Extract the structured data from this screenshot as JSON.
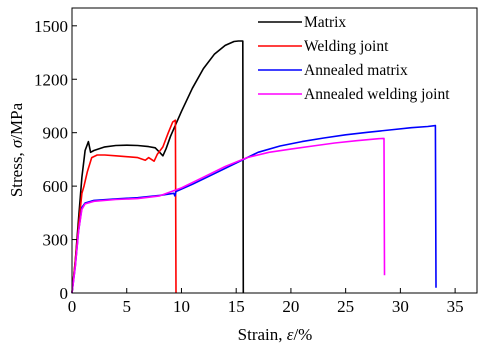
{
  "chart_data": {
    "type": "line",
    "xlabel_prefix": "Strain, ",
    "xlabel_symbol": "ε",
    "xlabel_suffix": "/%",
    "ylabel_prefix": "Stress, ",
    "ylabel_symbol": "σ",
    "ylabel_suffix": "/MPa",
    "xlim": [
      0,
      37
    ],
    "ylim": [
      0,
      1600
    ],
    "xticks": [
      0,
      5,
      10,
      15,
      20,
      25,
      30,
      35
    ],
    "yticks": [
      0,
      300,
      600,
      900,
      1200,
      1500
    ],
    "grid": false,
    "legend_position": "top-right",
    "series": [
      {
        "name": "Matrix",
        "color": "#000000",
        "points": [
          [
            0,
            0
          ],
          [
            0.3,
            180
          ],
          [
            0.6,
            420
          ],
          [
            0.9,
            650
          ],
          [
            1.2,
            800
          ],
          [
            1.5,
            850
          ],
          [
            1.7,
            790
          ],
          [
            2.0,
            800
          ],
          [
            3.0,
            820
          ],
          [
            4.0,
            828
          ],
          [
            5.0,
            830
          ],
          [
            6.0,
            828
          ],
          [
            7.0,
            822
          ],
          [
            7.6,
            815
          ],
          [
            8.0,
            790
          ],
          [
            8.3,
            770
          ],
          [
            8.6,
            810
          ],
          [
            9.0,
            880
          ],
          [
            10.0,
            1020
          ],
          [
            11.0,
            1150
          ],
          [
            12.0,
            1260
          ],
          [
            13.0,
            1340
          ],
          [
            14.0,
            1390
          ],
          [
            14.8,
            1412
          ],
          [
            15.2,
            1415
          ],
          [
            15.6,
            1415
          ],
          [
            15.65,
            0
          ]
        ]
      },
      {
        "name": "Welding joint",
        "color": "#ff0000",
        "points": [
          [
            0,
            0
          ],
          [
            0.3,
            180
          ],
          [
            0.6,
            380
          ],
          [
            0.9,
            560
          ],
          [
            1.1,
            600
          ],
          [
            1.4,
            680
          ],
          [
            1.8,
            760
          ],
          [
            2.3,
            775
          ],
          [
            3.0,
            775
          ],
          [
            4.0,
            770
          ],
          [
            5.0,
            765
          ],
          [
            6.0,
            760
          ],
          [
            6.7,
            745
          ],
          [
            7.0,
            760
          ],
          [
            7.5,
            740
          ],
          [
            7.8,
            780
          ],
          [
            8.3,
            820
          ],
          [
            8.8,
            900
          ],
          [
            9.2,
            960
          ],
          [
            9.45,
            970
          ],
          [
            9.5,
            0
          ]
        ]
      },
      {
        "name": "Annealed matrix",
        "color": "#0000ff",
        "points": [
          [
            0,
            0
          ],
          [
            0.3,
            150
          ],
          [
            0.6,
            350
          ],
          [
            0.9,
            480
          ],
          [
            1.2,
            505
          ],
          [
            2.0,
            520
          ],
          [
            4.0,
            528
          ],
          [
            6.0,
            535
          ],
          [
            8.0,
            548
          ],
          [
            9.3,
            560
          ],
          [
            9.4,
            545
          ],
          [
            9.5,
            570
          ],
          [
            11.0,
            610
          ],
          [
            13.0,
            670
          ],
          [
            15.0,
            730
          ],
          [
            17.0,
            790
          ],
          [
            19.0,
            825
          ],
          [
            21.0,
            850
          ],
          [
            23.0,
            870
          ],
          [
            25.0,
            888
          ],
          [
            27.0,
            902
          ],
          [
            29.0,
            915
          ],
          [
            31.0,
            928
          ],
          [
            32.5,
            935
          ],
          [
            33.2,
            940
          ],
          [
            33.25,
            30
          ]
        ]
      },
      {
        "name": "Annealed welding joint",
        "color": "#ff00ff",
        "points": [
          [
            0,
            0
          ],
          [
            0.3,
            150
          ],
          [
            0.6,
            350
          ],
          [
            0.9,
            470
          ],
          [
            1.2,
            500
          ],
          [
            2.0,
            515
          ],
          [
            4.0,
            525
          ],
          [
            6.0,
            530
          ],
          [
            8.0,
            545
          ],
          [
            10.0,
            590
          ],
          [
            12.0,
            650
          ],
          [
            14.0,
            710
          ],
          [
            16.0,
            760
          ],
          [
            18.0,
            790
          ],
          [
            20.0,
            808
          ],
          [
            22.0,
            825
          ],
          [
            24.0,
            842
          ],
          [
            26.0,
            855
          ],
          [
            28.0,
            866
          ],
          [
            28.5,
            868
          ],
          [
            28.55,
            100
          ]
        ]
      }
    ]
  }
}
